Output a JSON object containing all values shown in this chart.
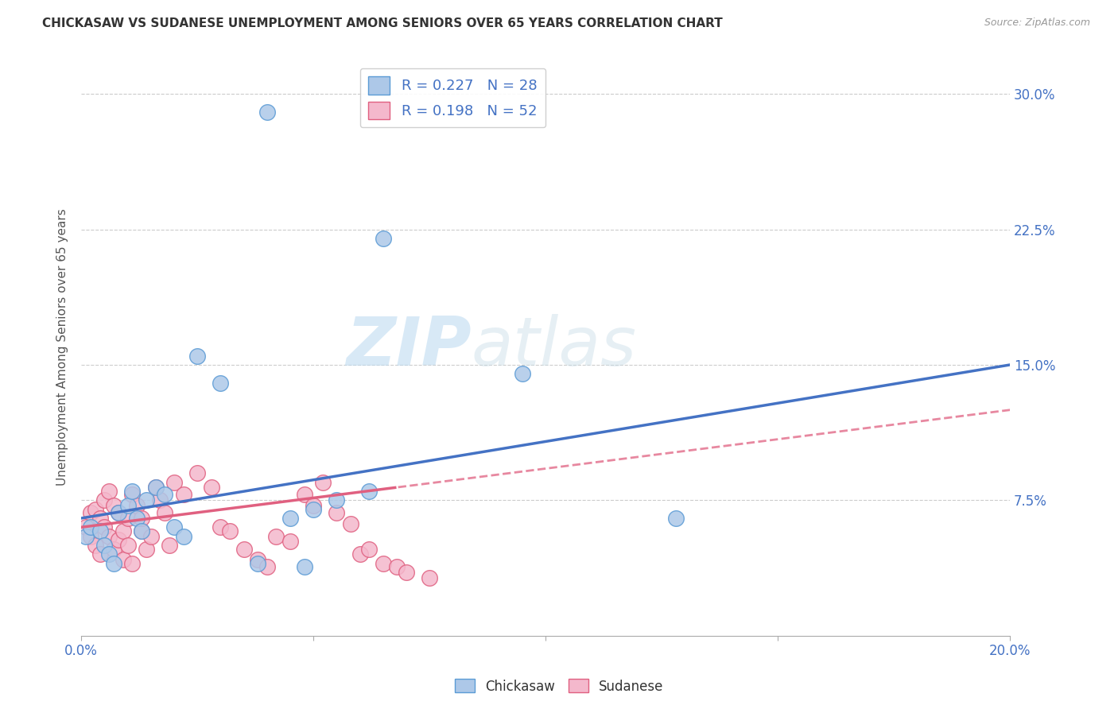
{
  "title": "CHICKASAW VS SUDANESE UNEMPLOYMENT AMONG SENIORS OVER 65 YEARS CORRELATION CHART",
  "source": "Source: ZipAtlas.com",
  "ylabel": "Unemployment Among Seniors over 65 years",
  "xlim": [
    0.0,
    0.2
  ],
  "ylim": [
    0.0,
    0.32
  ],
  "chickasaw_fill": "#adc8e8",
  "chickasaw_edge": "#5b9bd5",
  "sudanese_fill": "#f4b8cc",
  "sudanese_edge": "#e06080",
  "chickasaw_line": "#4472c4",
  "sudanese_line": "#e06080",
  "watermark_color": "#d0e8f5",
  "R_chickasaw": 0.227,
  "N_chickasaw": 28,
  "R_sudanese": 0.198,
  "N_sudanese": 52,
  "chickasaw_x": [
    0.001,
    0.002,
    0.004,
    0.005,
    0.006,
    0.007,
    0.008,
    0.01,
    0.011,
    0.012,
    0.013,
    0.014,
    0.016,
    0.018,
    0.02,
    0.022,
    0.025,
    0.03,
    0.038,
    0.04,
    0.045,
    0.048,
    0.05,
    0.055,
    0.062,
    0.065,
    0.095,
    0.128
  ],
  "chickasaw_y": [
    0.055,
    0.06,
    0.058,
    0.05,
    0.045,
    0.04,
    0.068,
    0.072,
    0.08,
    0.065,
    0.058,
    0.075,
    0.082,
    0.078,
    0.06,
    0.055,
    0.155,
    0.14,
    0.04,
    0.29,
    0.065,
    0.038,
    0.07,
    0.075,
    0.08,
    0.22,
    0.145,
    0.065
  ],
  "sudanese_x": [
    0.001,
    0.002,
    0.002,
    0.003,
    0.003,
    0.004,
    0.004,
    0.005,
    0.005,
    0.006,
    0.006,
    0.007,
    0.007,
    0.008,
    0.008,
    0.009,
    0.009,
    0.01,
    0.01,
    0.011,
    0.011,
    0.012,
    0.013,
    0.013,
    0.014,
    0.015,
    0.016,
    0.017,
    0.018,
    0.019,
    0.02,
    0.022,
    0.025,
    0.028,
    0.03,
    0.032,
    0.035,
    0.038,
    0.04,
    0.042,
    0.045,
    0.048,
    0.05,
    0.052,
    0.055,
    0.058,
    0.06,
    0.062,
    0.065,
    0.068,
    0.07,
    0.075
  ],
  "sudanese_y": [
    0.06,
    0.055,
    0.068,
    0.05,
    0.07,
    0.065,
    0.045,
    0.06,
    0.075,
    0.055,
    0.08,
    0.048,
    0.072,
    0.053,
    0.068,
    0.042,
    0.058,
    0.065,
    0.05,
    0.078,
    0.04,
    0.072,
    0.058,
    0.065,
    0.048,
    0.055,
    0.082,
    0.075,
    0.068,
    0.05,
    0.085,
    0.078,
    0.09,
    0.082,
    0.06,
    0.058,
    0.048,
    0.042,
    0.038,
    0.055,
    0.052,
    0.078,
    0.072,
    0.085,
    0.068,
    0.062,
    0.045,
    0.048,
    0.04,
    0.038,
    0.035,
    0.032
  ]
}
